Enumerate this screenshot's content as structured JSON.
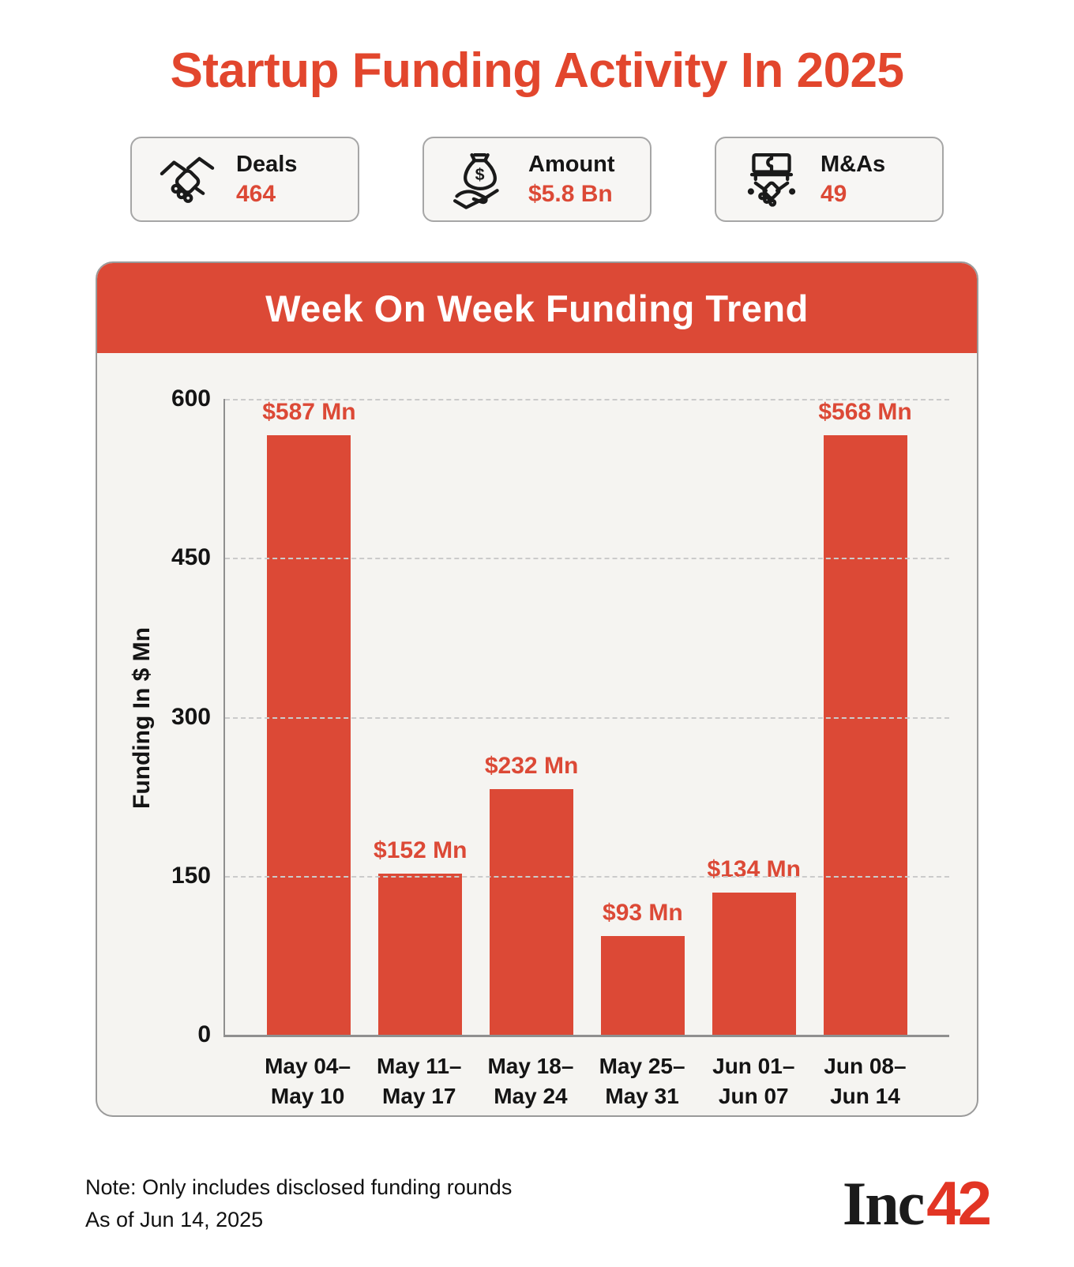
{
  "page": {
    "title": "Startup Funding Activity In 2025"
  },
  "colors": {
    "accent": "#DC4936",
    "title_red": "#E2462D",
    "panel_bg": "#F5F4F1",
    "card_bg": "#F7F6F4",
    "logo_red": "#E23524",
    "text": "#141414"
  },
  "stats": [
    {
      "label": "Deals",
      "value": "464",
      "icon": "handshake-icon"
    },
    {
      "label": "Amount",
      "value": "$5.8 Bn",
      "icon": "money-bag-hand-icon"
    },
    {
      "label": "M&As",
      "value": "49",
      "icon": "merger-puzzle-handshake-icon"
    }
  ],
  "chart_data": {
    "type": "bar",
    "title": "Week On Week Funding Trend",
    "categories": [
      "May 04–May 10",
      "May 11–May 17",
      "May 18–May 24",
      "May 25–May 31",
      "Jun 01–Jun 07",
      "Jun 08–Jun 14"
    ],
    "category_lines": [
      [
        "May 04–",
        "May 10"
      ],
      [
        "May 11–",
        "May 17"
      ],
      [
        "May 18–",
        "May 24"
      ],
      [
        "May 25–",
        "May 31"
      ],
      [
        "Jun 01–",
        "Jun 07"
      ],
      [
        "Jun 08–",
        "Jun 14"
      ]
    ],
    "values": [
      587,
      152,
      232,
      93,
      134,
      568
    ],
    "value_labels": [
      "$587 Mn",
      "$152 Mn",
      "$232 Mn",
      "$93 Mn",
      "$134 Mn",
      "$568 Mn"
    ],
    "xlabel": "",
    "ylabel": "Funding In $ Mn",
    "ylim": [
      0,
      600
    ],
    "yticks": [
      0,
      150,
      300,
      450,
      600
    ],
    "grid": "horizontal-dashed",
    "legend": "none",
    "bar_color": "#DC4936"
  },
  "footer": {
    "note_line1": "Note: Only includes disclosed funding rounds",
    "note_line2": "As of Jun 14, 2025",
    "logo_black": "Inc",
    "logo_red": "42"
  }
}
